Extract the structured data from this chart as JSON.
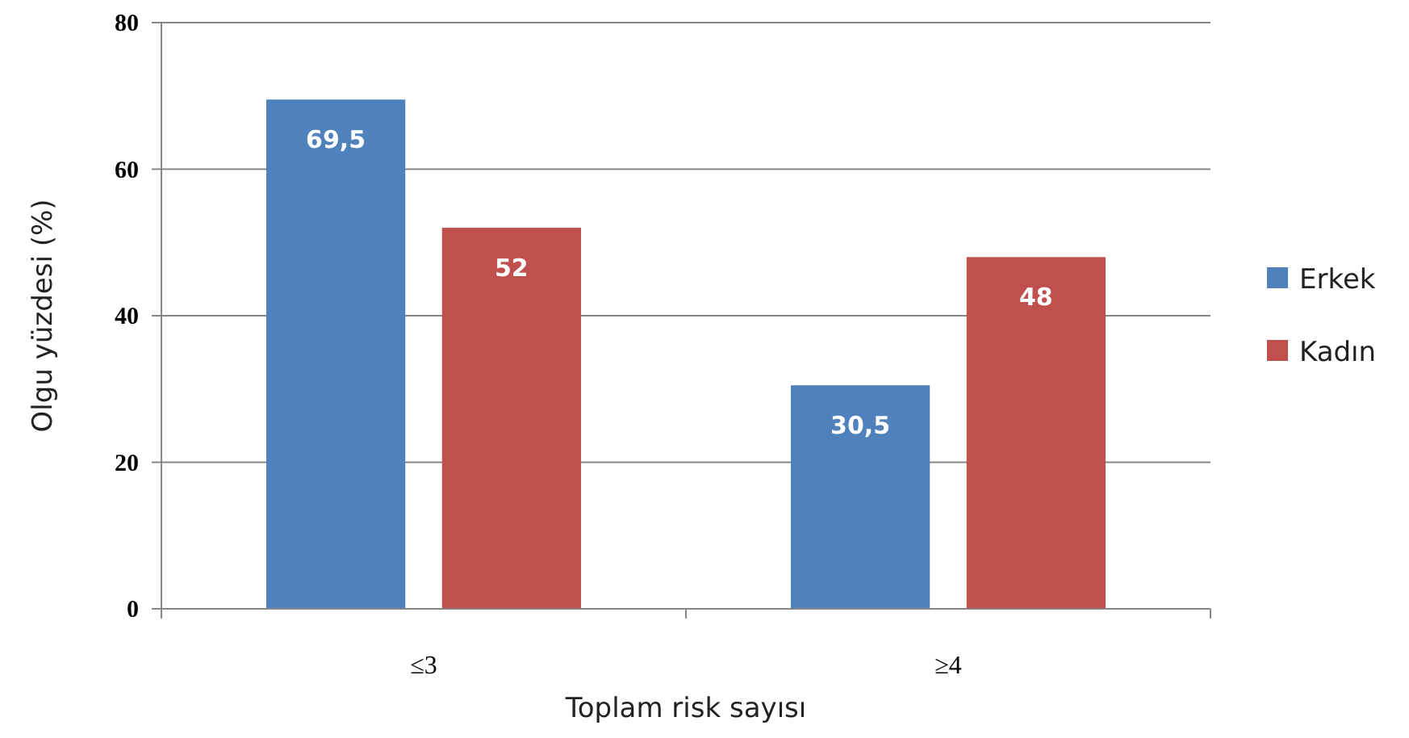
{
  "chart_data": {
    "type": "bar",
    "xlabel": "Toplam risk sayısı",
    "ylabel": "Olgu yüzdesi (%)",
    "categories": [
      "≤3",
      "≥4"
    ],
    "series": [
      {
        "name": "Erkek",
        "color": "#4f81bd",
        "values": [
          69.5,
          30.5
        ],
        "value_labels": [
          "69,5",
          "30,5"
        ]
      },
      {
        "name": "Kadın",
        "color": "#c0504d",
        "values": [
          52,
          48
        ],
        "value_labels": [
          "52",
          "48"
        ]
      }
    ],
    "ylim": [
      0,
      80
    ],
    "yticks": [
      0,
      20,
      40,
      60,
      80
    ],
    "grid": "y",
    "legend": "right"
  }
}
